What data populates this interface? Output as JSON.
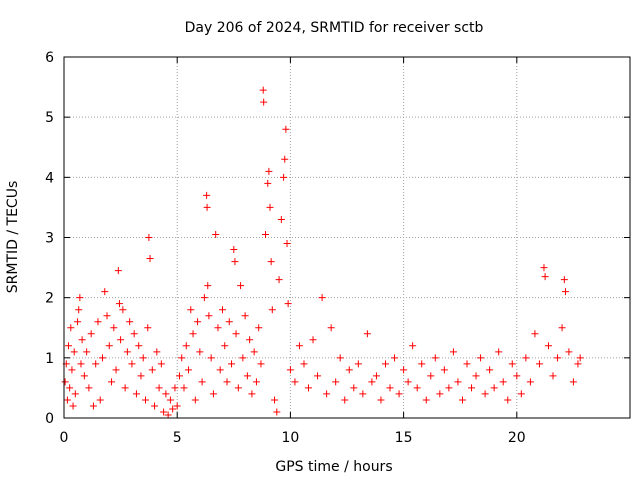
{
  "chart_data": {
    "type": "scatter",
    "title": "Day 206 of 2024, SRMTID for receiver sctb",
    "xlabel": "GPS time / hours",
    "ylabel": "SRMTID / TECUs",
    "xlim": [
      0,
      25
    ],
    "ylim": [
      0,
      6
    ],
    "x_ticks": [
      0,
      5,
      10,
      15,
      20
    ],
    "y_ticks": [
      0,
      1,
      2,
      3,
      4,
      5,
      6
    ],
    "grid": true,
    "marker": "plus",
    "color": "#ff0000",
    "series": [
      {
        "name": "SRMTID",
        "points": [
          [
            0.05,
            0.6
          ],
          [
            0.1,
            0.9
          ],
          [
            0.15,
            0.3
          ],
          [
            0.2,
            1.2
          ],
          [
            0.25,
            0.5
          ],
          [
            0.3,
            1.5
          ],
          [
            0.35,
            0.8
          ],
          [
            0.4,
            0.2
          ],
          [
            0.45,
            1.1
          ],
          [
            0.5,
            0.4
          ],
          [
            0.6,
            1.6
          ],
          [
            0.65,
            1.8
          ],
          [
            0.7,
            2.0
          ],
          [
            0.75,
            0.9
          ],
          [
            0.8,
            1.3
          ],
          [
            0.9,
            0.7
          ],
          [
            1.0,
            1.1
          ],
          [
            1.1,
            0.5
          ],
          [
            1.2,
            1.4
          ],
          [
            1.3,
            0.2
          ],
          [
            1.4,
            0.9
          ],
          [
            1.5,
            1.6
          ],
          [
            1.6,
            0.3
          ],
          [
            1.7,
            1.0
          ],
          [
            1.8,
            2.1
          ],
          [
            1.9,
            1.7
          ],
          [
            2.0,
            1.2
          ],
          [
            2.1,
            0.6
          ],
          [
            2.2,
            1.5
          ],
          [
            2.3,
            0.8
          ],
          [
            2.4,
            2.45
          ],
          [
            2.45,
            1.9
          ],
          [
            2.5,
            1.3
          ],
          [
            2.6,
            1.8
          ],
          [
            2.7,
            0.5
          ],
          [
            2.8,
            1.1
          ],
          [
            2.9,
            1.6
          ],
          [
            3.0,
            0.9
          ],
          [
            3.1,
            1.4
          ],
          [
            3.2,
            0.4
          ],
          [
            3.3,
            1.2
          ],
          [
            3.4,
            0.7
          ],
          [
            3.5,
            1.0
          ],
          [
            3.6,
            0.3
          ],
          [
            3.7,
            1.5
          ],
          [
            3.75,
            3.0
          ],
          [
            3.8,
            2.65
          ],
          [
            3.9,
            0.8
          ],
          [
            4.0,
            0.2
          ],
          [
            4.1,
            1.1
          ],
          [
            4.2,
            0.5
          ],
          [
            4.3,
            0.9
          ],
          [
            4.4,
            0.1
          ],
          [
            4.5,
            0.4
          ],
          [
            4.6,
            0.05
          ],
          [
            4.7,
            0.3
          ],
          [
            4.8,
            0.15
          ],
          [
            4.9,
            0.5
          ],
          [
            5.0,
            0.2
          ],
          [
            5.1,
            0.7
          ],
          [
            5.2,
            1.0
          ],
          [
            5.3,
            0.5
          ],
          [
            5.4,
            1.2
          ],
          [
            5.5,
            0.8
          ],
          [
            5.6,
            1.8
          ],
          [
            5.7,
            1.4
          ],
          [
            5.8,
            0.3
          ],
          [
            5.9,
            1.6
          ],
          [
            6.0,
            1.1
          ],
          [
            6.1,
            0.6
          ],
          [
            6.2,
            2.0
          ],
          [
            6.3,
            3.7
          ],
          [
            6.32,
            3.5
          ],
          [
            6.35,
            2.2
          ],
          [
            6.4,
            1.7
          ],
          [
            6.5,
            1.0
          ],
          [
            6.6,
            0.4
          ],
          [
            6.7,
            3.05
          ],
          [
            6.8,
            1.5
          ],
          [
            6.9,
            0.8
          ],
          [
            7.0,
            1.8
          ],
          [
            7.1,
            1.2
          ],
          [
            7.2,
            0.6
          ],
          [
            7.3,
            1.6
          ],
          [
            7.4,
            0.9
          ],
          [
            7.5,
            2.8
          ],
          [
            7.55,
            2.6
          ],
          [
            7.6,
            1.4
          ],
          [
            7.7,
            0.5
          ],
          [
            7.8,
            2.2
          ],
          [
            7.9,
            1.0
          ],
          [
            8.0,
            1.7
          ],
          [
            8.1,
            0.7
          ],
          [
            8.2,
            1.3
          ],
          [
            8.3,
            0.4
          ],
          [
            8.4,
            1.1
          ],
          [
            8.5,
            0.6
          ],
          [
            8.6,
            1.5
          ],
          [
            8.7,
            0.9
          ],
          [
            8.8,
            5.45
          ],
          [
            8.82,
            5.25
          ],
          [
            8.9,
            3.05
          ],
          [
            9.0,
            3.9
          ],
          [
            9.05,
            4.1
          ],
          [
            9.1,
            3.5
          ],
          [
            9.15,
            2.6
          ],
          [
            9.2,
            1.8
          ],
          [
            9.3,
            0.3
          ],
          [
            9.4,
            0.1
          ],
          [
            9.5,
            2.3
          ],
          [
            9.6,
            3.3
          ],
          [
            9.7,
            4.0
          ],
          [
            9.75,
            4.3
          ],
          [
            9.8,
            4.8
          ],
          [
            9.85,
            2.9
          ],
          [
            9.9,
            1.9
          ],
          [
            10.0,
            0.8
          ],
          [
            10.2,
            0.6
          ],
          [
            10.4,
            1.2
          ],
          [
            10.6,
            0.9
          ],
          [
            10.8,
            0.5
          ],
          [
            11.0,
            1.3
          ],
          [
            11.2,
            0.7
          ],
          [
            11.4,
            2.0
          ],
          [
            11.6,
            0.4
          ],
          [
            11.8,
            1.5
          ],
          [
            12.0,
            0.6
          ],
          [
            12.2,
            1.0
          ],
          [
            12.4,
            0.3
          ],
          [
            12.6,
            0.8
          ],
          [
            12.8,
            0.5
          ],
          [
            13.0,
            0.9
          ],
          [
            13.2,
            0.4
          ],
          [
            13.4,
            1.4
          ],
          [
            13.6,
            0.6
          ],
          [
            13.8,
            0.7
          ],
          [
            14.0,
            0.3
          ],
          [
            14.2,
            0.9
          ],
          [
            14.4,
            0.5
          ],
          [
            14.6,
            1.0
          ],
          [
            14.8,
            0.4
          ],
          [
            15.0,
            0.8
          ],
          [
            15.2,
            0.6
          ],
          [
            15.4,
            1.2
          ],
          [
            15.6,
            0.5
          ],
          [
            15.8,
            0.9
          ],
          [
            16.0,
            0.3
          ],
          [
            16.2,
            0.7
          ],
          [
            16.4,
            1.0
          ],
          [
            16.6,
            0.4
          ],
          [
            16.8,
            0.8
          ],
          [
            17.0,
            0.5
          ],
          [
            17.2,
            1.1
          ],
          [
            17.4,
            0.6
          ],
          [
            17.6,
            0.3
          ],
          [
            17.8,
            0.9
          ],
          [
            18.0,
            0.5
          ],
          [
            18.2,
            0.7
          ],
          [
            18.4,
            1.0
          ],
          [
            18.6,
            0.4
          ],
          [
            18.8,
            0.8
          ],
          [
            19.0,
            0.5
          ],
          [
            19.2,
            1.1
          ],
          [
            19.4,
            0.6
          ],
          [
            19.6,
            0.3
          ],
          [
            19.8,
            0.9
          ],
          [
            20.0,
            0.7
          ],
          [
            20.2,
            0.4
          ],
          [
            20.4,
            1.0
          ],
          [
            20.6,
            0.6
          ],
          [
            20.8,
            1.4
          ],
          [
            21.0,
            0.9
          ],
          [
            21.2,
            2.5
          ],
          [
            21.25,
            2.35
          ],
          [
            21.4,
            1.2
          ],
          [
            21.6,
            0.7
          ],
          [
            21.8,
            1.0
          ],
          [
            22.0,
            1.5
          ],
          [
            22.1,
            2.3
          ],
          [
            22.15,
            2.1
          ],
          [
            22.3,
            1.1
          ],
          [
            22.5,
            0.6
          ],
          [
            22.7,
            0.9
          ],
          [
            22.8,
            1.0
          ]
        ]
      }
    ]
  }
}
